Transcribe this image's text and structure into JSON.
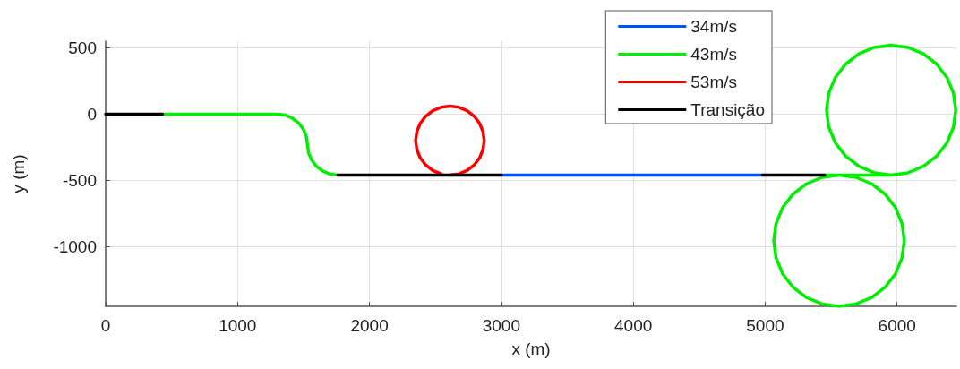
{
  "chart_data": {
    "type": "line",
    "xlabel": "x (m)",
    "ylabel": "y (m)",
    "xlim": [
      0,
      6450
    ],
    "ylim": [
      -1450,
      550
    ],
    "xticks": [
      0,
      1000,
      2000,
      3000,
      4000,
      5000,
      6000
    ],
    "yticks": [
      -1000,
      -500,
      0,
      500
    ],
    "grid": true,
    "legend": "top right",
    "marker": "none",
    "line_style": "solid",
    "series": [
      {
        "name": "34m/s",
        "color": "#0050ff",
        "x": [
          3000,
          4980
        ],
        "values": [
          -460,
          -460
        ]
      },
      {
        "name": "43m/s",
        "color": "#00ee00",
        "x": [
          430,
          1300,
          1360,
          1415,
          1463,
          1499,
          1522,
          1530,
          1538,
          1561,
          1597,
          1645,
          1700,
          1760,
          null,
          5450,
          5560,
          5688,
          5808,
          5910,
          5989,
          6038,
          6055,
          6038,
          5989,
          5910,
          5808,
          5688,
          5560,
          5432,
          5312,
          5210,
          5131,
          5082,
          5065,
          5082,
          5131,
          5210,
          5312,
          5432,
          5560,
          5955,
          6082,
          6200,
          6301,
          6379,
          6428,
          6445,
          6428,
          6379,
          6301,
          6200,
          6082,
          5955,
          5828,
          5710,
          5609,
          5531,
          5482,
          5465,
          5482,
          5531,
          5609,
          5710,
          5828,
          5955
        ],
        "values": [
          0,
          0,
          -8,
          -31,
          -67,
          -115,
          -170,
          -230,
          -290,
          -345,
          -393,
          -429,
          -452,
          -460,
          null,
          -460,
          -460,
          -477,
          -526,
          -605,
          -707,
          -827,
          -955,
          -1083,
          -1203,
          -1305,
          -1384,
          -1433,
          -1450,
          -1433,
          -1384,
          -1305,
          -1203,
          -1083,
          -955,
          -827,
          -707,
          -605,
          -526,
          -477,
          -460,
          -460,
          -443,
          -394,
          -316,
          -215,
          -97,
          30,
          157,
          275,
          376,
          454,
          503,
          520,
          503,
          454,
          376,
          275,
          157,
          30,
          -97,
          -215,
          -316,
          -394,
          -443,
          -460
        ]
      },
      {
        "name": "53m/s",
        "color": "#ff0000",
        "x": [
          2610,
          2677,
          2740,
          2794,
          2835,
          2861,
          2870,
          2861,
          2835,
          2794,
          2740,
          2677,
          2610,
          2543,
          2480,
          2426,
          2385,
          2359,
          2350,
          2359,
          2385,
          2426,
          2480,
          2543
        ],
        "values": [
          -460,
          -451,
          -425,
          -384,
          -330,
          -267,
          -200,
          -133,
          -70,
          -16,
          25,
          51,
          60,
          51,
          25,
          -16,
          -70,
          -133,
          -200,
          -267,
          -330,
          -384,
          -425,
          -451
        ]
      },
      {
        "name": "Transição",
        "color": "#000000",
        "x": [
          0,
          430,
          null,
          1760,
          3000,
          null,
          4980,
          5450
        ],
        "values": [
          0,
          0,
          null,
          -460,
          -460,
          null,
          -460,
          -460
        ]
      }
    ]
  }
}
